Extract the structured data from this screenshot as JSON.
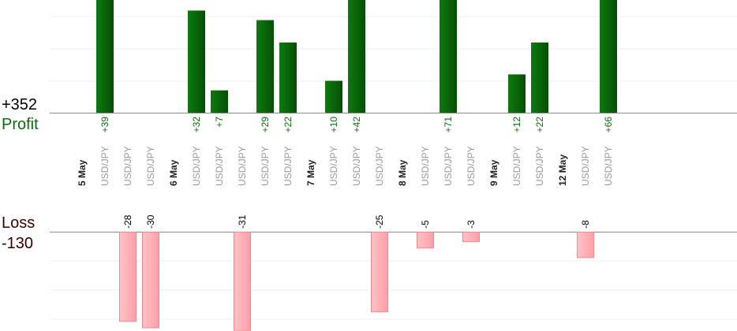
{
  "chart_data": {
    "type": "bar",
    "profit": {
      "label": "Profit",
      "total": "+352",
      "color": "#0a6b0a"
    },
    "loss": {
      "label": "Loss",
      "total": "-130",
      "color": "#ff9fa6"
    },
    "categories": [
      {
        "label": "5 May",
        "is_date": true
      },
      {
        "label": "USD/JPY",
        "value": 39
      },
      {
        "label": "USD/JPY",
        "value": -28
      },
      {
        "label": "USD/JPY",
        "value": -30
      },
      {
        "label": "6 May",
        "is_date": true
      },
      {
        "label": "USD/JPY",
        "value": 32
      },
      {
        "label": "USD/JPY",
        "value": 7
      },
      {
        "label": "USD/JPY",
        "value": -31
      },
      {
        "label": "USD/JPY",
        "value": 29
      },
      {
        "label": "USD/JPY",
        "value": 22
      },
      {
        "label": "7 May",
        "is_date": true
      },
      {
        "label": "USD/JPY",
        "value": 10
      },
      {
        "label": "USD/JPY",
        "value": 42
      },
      {
        "label": "USD/JPY",
        "value": -25
      },
      {
        "label": "8 May",
        "is_date": true
      },
      {
        "label": "USD/JPY",
        "value": -5
      },
      {
        "label": "USD/JPY",
        "value": 71
      },
      {
        "label": "USD/JPY",
        "value": -3
      },
      {
        "label": "9 May",
        "is_date": true
      },
      {
        "label": "USD/JPY",
        "value": 12
      },
      {
        "label": "USD/JPY",
        "value": 22
      },
      {
        "label": "12 May",
        "is_date": true
      },
      {
        "label": "USD/JPY",
        "value": -8
      },
      {
        "label": "USD/JPY",
        "value": 66
      }
    ]
  }
}
